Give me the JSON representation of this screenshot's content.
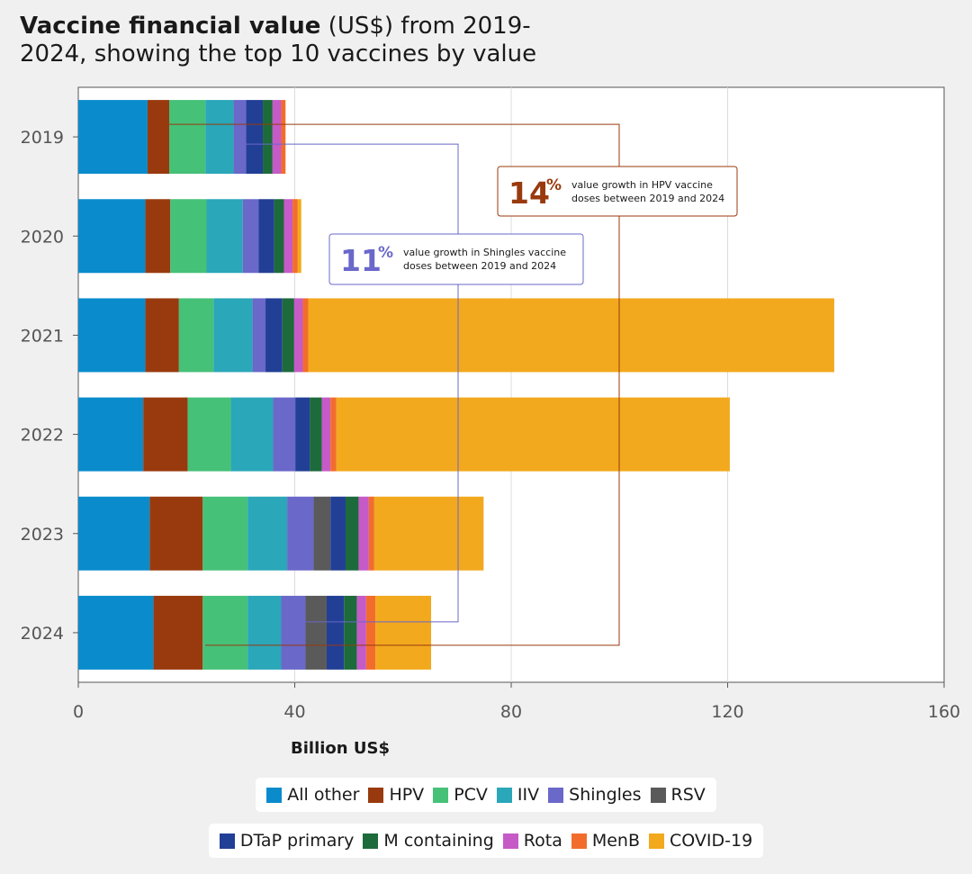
{
  "title": {
    "bold": "Vaccine financial value",
    "rest": " (US$) from 2019-",
    "line2": "2024, showing the top 10 vaccines by value"
  },
  "chart_data": {
    "type": "bar",
    "orientation": "horizontal",
    "stacked": true,
    "categories": [
      "2019",
      "2020",
      "2021",
      "2022",
      "2023",
      "2024"
    ],
    "xlabel": "Billion US$",
    "ylabel": "",
    "xlim": [
      0,
      160
    ],
    "xticks": [
      "0",
      "40",
      "80",
      "120",
      "160"
    ],
    "grid": true,
    "series": [
      {
        "name": "All other",
        "color": "#0a8ccc",
        "values": [
          12.8,
          12.4,
          12.4,
          12.0,
          13.2,
          13.9
        ]
      },
      {
        "name": "HPV",
        "color": "#993a0e",
        "values": [
          4.0,
          4.6,
          6.2,
          8.2,
          9.8,
          9.1
        ]
      },
      {
        "name": "PCV",
        "color": "#46c178",
        "values": [
          6.7,
          6.7,
          6.4,
          8.0,
          8.3,
          8.3
        ]
      },
      {
        "name": "IIV",
        "color": "#2aa7b8",
        "values": [
          5.2,
          6.7,
          7.2,
          7.8,
          7.3,
          6.2
        ]
      },
      {
        "name": "Shingles",
        "color": "#6a68c9",
        "values": [
          2.3,
          2.9,
          2.4,
          4.1,
          4.9,
          4.5
        ]
      },
      {
        "name": "RSV",
        "color": "#5a5a5a",
        "values": [
          0,
          0,
          0,
          0,
          3.1,
          3.9
        ]
      },
      {
        "name": "DTaP primary",
        "color": "#223f96",
        "values": [
          3.1,
          2.9,
          3.1,
          2.7,
          2.8,
          3.2
        ]
      },
      {
        "name": "M containing",
        "color": "#1d6a3b",
        "values": [
          1.8,
          1.8,
          2.2,
          2.2,
          2.4,
          2.4
        ]
      },
      {
        "name": "Rota",
        "color": "#c65ac7",
        "values": [
          1.6,
          1.6,
          1.6,
          1.6,
          1.9,
          1.7
        ]
      },
      {
        "name": "MenB",
        "color": "#f26d2c",
        "values": [
          0.8,
          0.9,
          1.0,
          1.1,
          1.0,
          1.7
        ]
      },
      {
        "name": "COVID-19",
        "color": "#f2a91e",
        "values": [
          0,
          0.7,
          97.2,
          72.7,
          20.2,
          10.3
        ]
      }
    ],
    "annotations": [
      {
        "id": "hpv",
        "number": "14",
        "suffix": "%",
        "line1": "value growth in HPV vaccine",
        "line2": "doses between 2019 and 2024",
        "color": "#993a0e"
      },
      {
        "id": "shingles",
        "number": "11",
        "suffix": "%",
        "line1": "value growth in Shingles vaccine",
        "line2": "doses between 2019 and 2024",
        "color": "#6a68c9"
      }
    ]
  },
  "legend": {
    "row1": [
      "All other",
      "HPV",
      "PCV",
      "IIV",
      "Shingles",
      "RSV"
    ],
    "row2": [
      "DTaP primary",
      "M containing",
      "Rota",
      "MenB",
      "COVID-19"
    ]
  }
}
